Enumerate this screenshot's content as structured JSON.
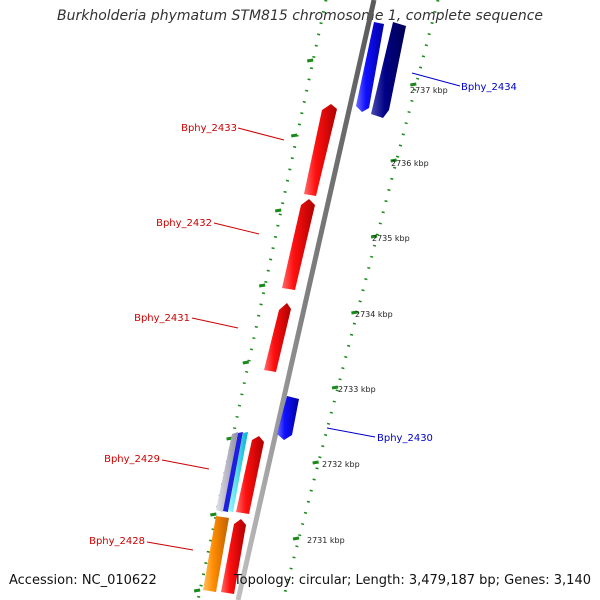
{
  "title": "Burkholderia phymatum STM815 chromosome 1, complete sequence",
  "footer": {
    "accession": "Accession: NC_010622",
    "summary": "Topology: circular; Length: 3,479,187 bp; Genes: 3,140"
  },
  "scale_labels": [
    "2737 kbp",
    "2736 kbp",
    "2735 kbp",
    "2734 kbp",
    "2733 kbp",
    "2732 kbp",
    "2731 kbp"
  ],
  "genes": [
    {
      "name": "Bphy_2434",
      "strand": "forward",
      "color": "#0000cc",
      "label_color": "#0000cc"
    },
    {
      "name": "Bphy_2433",
      "strand": "reverse",
      "color": "#ff0000",
      "label_color": "#cc0000"
    },
    {
      "name": "Bphy_2432",
      "strand": "reverse",
      "color": "#ff0000",
      "label_color": "#cc0000"
    },
    {
      "name": "Bphy_2431",
      "strand": "reverse",
      "color": "#ff0000",
      "label_color": "#cc0000"
    },
    {
      "name": "Bphy_2430",
      "strand": "forward",
      "color": "#0000ff",
      "label_color": "#0000cc"
    },
    {
      "name": "Bphy_2429",
      "strand": "reverse",
      "color": "#ff0000",
      "label_color": "#cc0000"
    },
    {
      "name": "Bphy_2428",
      "strand": "reverse",
      "color": "#ff0000",
      "label_color": "#cc0000"
    }
  ],
  "colors": {
    "backbone": "#888888",
    "scale_ticks": "#1a8a1a",
    "forward_gene": "#0000ff",
    "forward_gene_dark": "#00007f",
    "reverse_gene": "#ff0000",
    "orange_feature": "#ff8c00",
    "cyan_feature": "#00e5ff",
    "gray_feature": "#b0b0c0"
  }
}
